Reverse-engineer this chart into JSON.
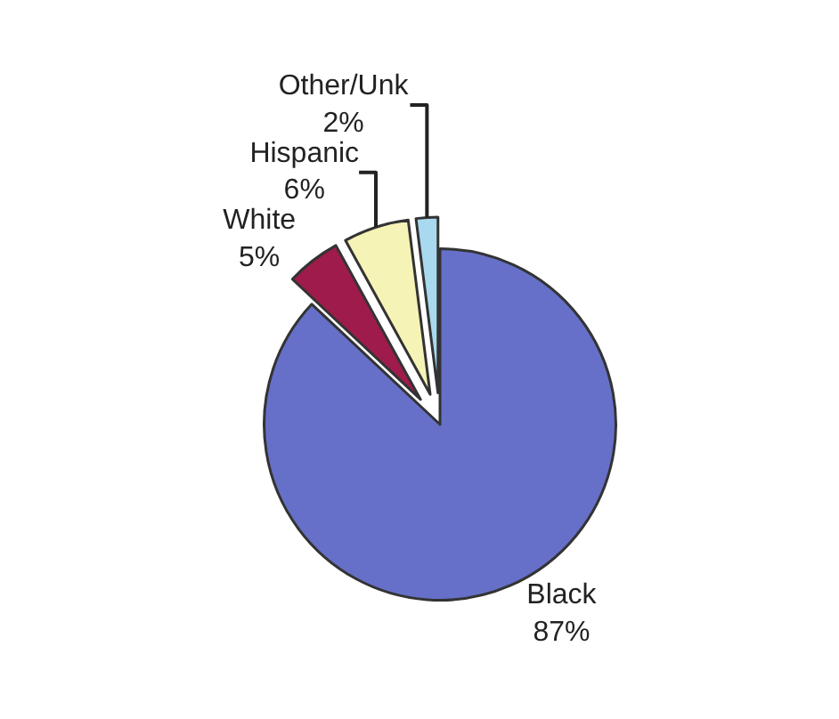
{
  "chart_data": {
    "type": "pie",
    "categories": [
      "Black",
      "White",
      "Hispanic",
      "Other/Unk"
    ],
    "values": [
      87,
      5,
      6,
      2
    ],
    "value_labels": [
      "87%",
      "5%",
      "6%",
      "2%"
    ],
    "colors": [
      "#6670c8",
      "#9e1b4b",
      "#f6f3b6",
      "#a9d9ee"
    ],
    "legend": false
  }
}
